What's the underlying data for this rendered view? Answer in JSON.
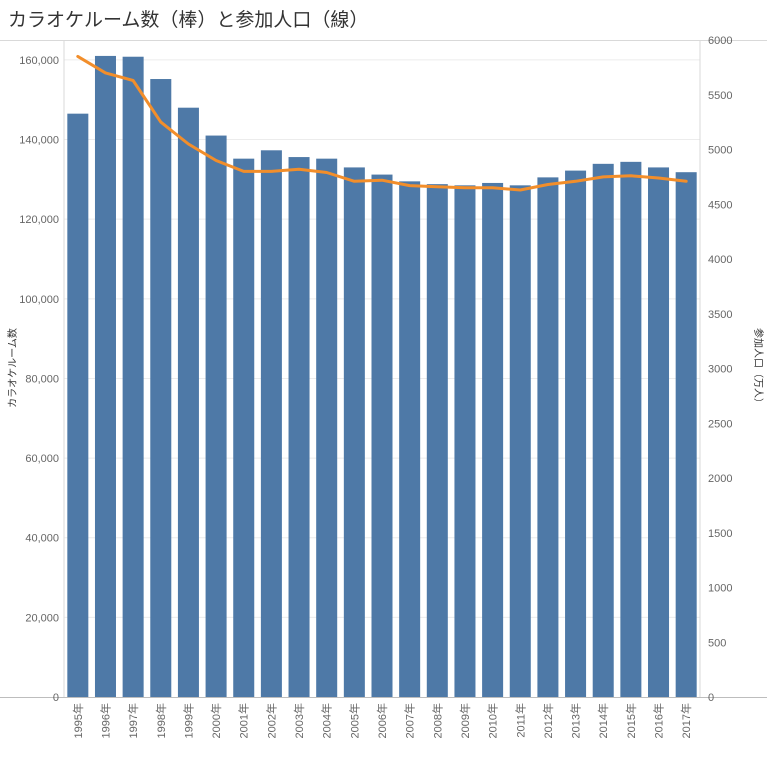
{
  "title": "カラオケルーム数（棒）と参加人口（線）",
  "chart_data": {
    "type": "bar+line",
    "categories": [
      "1995年",
      "1996年",
      "1997年",
      "1998年",
      "1999年",
      "2000年",
      "2001年",
      "2002年",
      "2003年",
      "2004年",
      "2005年",
      "2006年",
      "2007年",
      "2008年",
      "2009年",
      "2010年",
      "2011年",
      "2012年",
      "2013年",
      "2014年",
      "2015年",
      "2016年",
      "2017年"
    ],
    "series": [
      {
        "axis": "left",
        "kind": "bar",
        "color": "#4e79a7",
        "values": [
          146500,
          161000,
          160800,
          155200,
          148000,
          141000,
          135200,
          137300,
          135600,
          135200,
          133000,
          131200,
          129500,
          128800,
          128500,
          129100,
          128500,
          130500,
          132200,
          133900,
          134400,
          133000,
          131800
        ]
      },
      {
        "axis": "right",
        "kind": "line",
        "color": "#f28e2b",
        "values": [
          5850,
          5700,
          5630,
          5250,
          5050,
          4900,
          4800,
          4800,
          4820,
          4790,
          4710,
          4720,
          4670,
          4660,
          4650,
          4650,
          4630,
          4680,
          4710,
          4750,
          4760,
          4740,
          4710
        ]
      }
    ],
    "y_left": {
      "label": "カラオケルーム数",
      "min": 0,
      "max": 165000,
      "ticks": [
        0,
        20000,
        40000,
        60000,
        80000,
        100000,
        120000,
        140000,
        160000
      ],
      "tick_labels": [
        "0",
        "20,000",
        "40,000",
        "60,000",
        "80,000",
        "100,000",
        "120,000",
        "140,000",
        "160,000"
      ]
    },
    "y_right": {
      "label": "参加人口（万人）",
      "min": 0,
      "max": 6000,
      "ticks": [
        0,
        500,
        1000,
        1500,
        2000,
        2500,
        3000,
        3500,
        4000,
        4500,
        5000,
        5500,
        6000
      ],
      "tick_labels": [
        "0",
        "500",
        "1000",
        "1500",
        "2000",
        "2500",
        "3000",
        "3500",
        "4000",
        "4500",
        "5000",
        "5500",
        "6000"
      ]
    },
    "grid": true,
    "legend": "none"
  }
}
